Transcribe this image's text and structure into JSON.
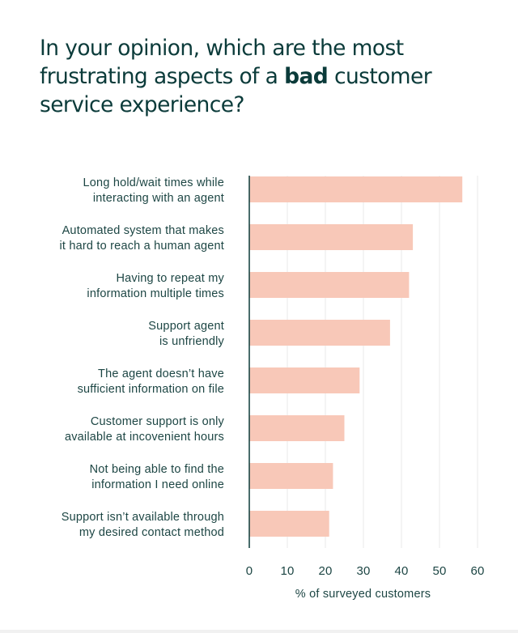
{
  "chart_data": {
    "type": "bar",
    "orientation": "horizontal",
    "title_parts": [
      "In your opinion, which are the most frustrating aspects of a ",
      "bad",
      " customer service experience?"
    ],
    "categories": [
      [
        "Long hold/wait times while",
        "interacting with an agent"
      ],
      [
        "Automated system that makes",
        "it hard to reach a human agent"
      ],
      [
        "Having to repeat my",
        "information multiple times"
      ],
      [
        "Support agent",
        "is unfriendly"
      ],
      [
        "The agent doesn’t have",
        "sufficient information on file"
      ],
      [
        "Customer support is only",
        "available at incovenient hours"
      ],
      [
        "Not being able to find the",
        "information I need online"
      ],
      [
        "Support isn’t available through",
        "my desired contact method"
      ]
    ],
    "values": [
      56,
      43,
      42,
      37,
      29,
      25,
      22,
      21
    ],
    "xlim": [
      0,
      60
    ],
    "xticks": [
      0,
      10,
      20,
      30,
      40,
      50,
      60
    ],
    "xlabel": "% of surveyed customers",
    "ylabel": "",
    "grid": true,
    "colors": {
      "bar": "#f8c8b8",
      "axis": "#0b3b3a",
      "grid": "#e9e9e9",
      "text": "#1d4644"
    }
  }
}
